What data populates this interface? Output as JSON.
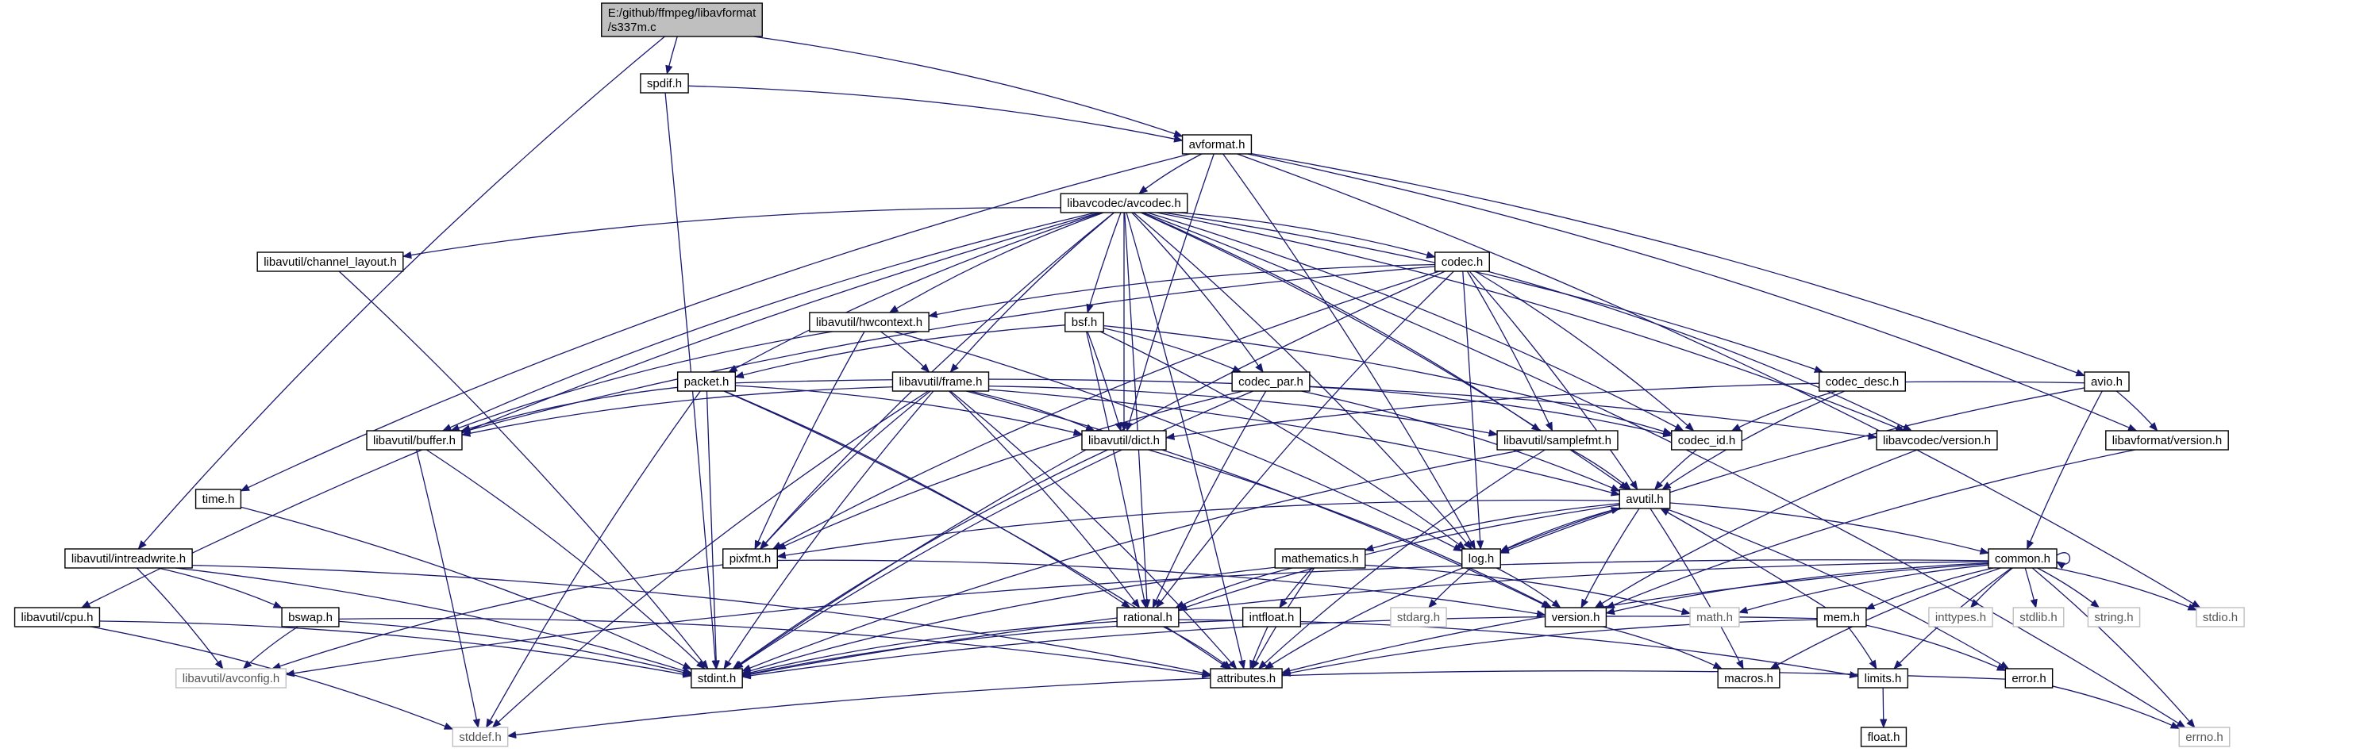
{
  "colors": {
    "edge": "#191970",
    "root_fill": "#bfbfbf",
    "node_fill": "#ffffff",
    "external_border": "#bfbfbf"
  },
  "nodes": [
    {
      "id": "root",
      "lines": [
        "E:/github/ffmpeg/libavformat",
        "/s337m.c"
      ],
      "kind": "root"
    },
    {
      "id": "spdif",
      "lines": [
        "spdif.h"
      ]
    },
    {
      "id": "avformat",
      "lines": [
        "avformat.h"
      ]
    },
    {
      "id": "avcodec",
      "lines": [
        "libavcodec/avcodec.h"
      ]
    },
    {
      "id": "chlayout",
      "lines": [
        "libavutil/channel_layout.h"
      ]
    },
    {
      "id": "codec",
      "lines": [
        "codec.h"
      ]
    },
    {
      "id": "hwcontext",
      "lines": [
        "libavutil/hwcontext.h"
      ]
    },
    {
      "id": "bsf",
      "lines": [
        "bsf.h"
      ]
    },
    {
      "id": "packet",
      "lines": [
        "packet.h"
      ]
    },
    {
      "id": "frame",
      "lines": [
        "libavutil/frame.h"
      ]
    },
    {
      "id": "codecpar",
      "lines": [
        "codec_par.h"
      ]
    },
    {
      "id": "codecdesc",
      "lines": [
        "codec_desc.h"
      ]
    },
    {
      "id": "avio",
      "lines": [
        "avio.h"
      ]
    },
    {
      "id": "buffer",
      "lines": [
        "libavutil/buffer.h"
      ]
    },
    {
      "id": "dict",
      "lines": [
        "libavutil/dict.h"
      ]
    },
    {
      "id": "samplefmt",
      "lines": [
        "libavutil/samplefmt.h"
      ]
    },
    {
      "id": "codecid",
      "lines": [
        "codec_id.h"
      ]
    },
    {
      "id": "lavcversion",
      "lines": [
        "libavcodec/version.h"
      ]
    },
    {
      "id": "lavfversion",
      "lines": [
        "libavformat/version.h"
      ]
    },
    {
      "id": "time",
      "lines": [
        "time.h"
      ]
    },
    {
      "id": "avutil",
      "lines": [
        "avutil.h"
      ]
    },
    {
      "id": "intreadwrite",
      "lines": [
        "libavutil/intreadwrite.h"
      ]
    },
    {
      "id": "pixfmt",
      "lines": [
        "pixfmt.h"
      ]
    },
    {
      "id": "mathematics",
      "lines": [
        "mathematics.h"
      ]
    },
    {
      "id": "log",
      "lines": [
        "log.h"
      ]
    },
    {
      "id": "common",
      "lines": [
        "common.h"
      ]
    },
    {
      "id": "cpu",
      "lines": [
        "libavutil/cpu.h"
      ]
    },
    {
      "id": "bswap",
      "lines": [
        "bswap.h"
      ]
    },
    {
      "id": "rational",
      "lines": [
        "rational.h"
      ]
    },
    {
      "id": "intfloat",
      "lines": [
        "intfloat.h"
      ]
    },
    {
      "id": "stdarg",
      "lines": [
        "stdarg.h"
      ],
      "kind": "ext"
    },
    {
      "id": "version",
      "lines": [
        "version.h"
      ]
    },
    {
      "id": "math",
      "lines": [
        "math.h"
      ],
      "kind": "ext"
    },
    {
      "id": "mem",
      "lines": [
        "mem.h"
      ]
    },
    {
      "id": "inttypes",
      "lines": [
        "inttypes.h"
      ],
      "kind": "ext"
    },
    {
      "id": "stdlib",
      "lines": [
        "stdlib.h"
      ],
      "kind": "ext"
    },
    {
      "id": "string",
      "lines": [
        "string.h"
      ],
      "kind": "ext"
    },
    {
      "id": "stdio",
      "lines": [
        "stdio.h"
      ],
      "kind": "ext"
    },
    {
      "id": "avconfig",
      "lines": [
        "libavutil/avconfig.h"
      ],
      "kind": "ext"
    },
    {
      "id": "stdint",
      "lines": [
        "stdint.h"
      ]
    },
    {
      "id": "attributes",
      "lines": [
        "attributes.h"
      ]
    },
    {
      "id": "macros",
      "lines": [
        "macros.h"
      ]
    },
    {
      "id": "limits",
      "lines": [
        "limits.h"
      ]
    },
    {
      "id": "error",
      "lines": [
        "error.h"
      ]
    },
    {
      "id": "stddef",
      "lines": [
        "stddef.h"
      ],
      "kind": "ext"
    },
    {
      "id": "float",
      "lines": [
        "float.h"
      ]
    },
    {
      "id": "errno",
      "lines": [
        "errno.h"
      ],
      "kind": "ext"
    }
  ],
  "edges": [
    [
      "root",
      "spdif"
    ],
    [
      "root",
      "avformat"
    ],
    [
      "root",
      "intreadwrite"
    ],
    [
      "spdif",
      "avformat"
    ],
    [
      "spdif",
      "stdint"
    ],
    [
      "avformat",
      "time"
    ],
    [
      "avformat",
      "avcodec"
    ],
    [
      "avformat",
      "avio"
    ],
    [
      "avformat",
      "lavfversion"
    ],
    [
      "avformat",
      "stdio"
    ],
    [
      "avformat",
      "dict"
    ],
    [
      "avformat",
      "log"
    ],
    [
      "avcodec",
      "chlayout"
    ],
    [
      "avcodec",
      "codec"
    ],
    [
      "avcodec",
      "hwcontext"
    ],
    [
      "avcodec",
      "bsf"
    ],
    [
      "avcodec",
      "packet"
    ],
    [
      "avcodec",
      "frame"
    ],
    [
      "avcodec",
      "codecpar"
    ],
    [
      "avcodec",
      "codecdesc"
    ],
    [
      "avcodec",
      "buffer"
    ],
    [
      "avcodec",
      "dict"
    ],
    [
      "avcodec",
      "samplefmt"
    ],
    [
      "avcodec",
      "codecid"
    ],
    [
      "avcodec",
      "lavcversion"
    ],
    [
      "avcodec",
      "avutil"
    ],
    [
      "avcodec",
      "pixfmt"
    ],
    [
      "avcodec",
      "log"
    ],
    [
      "avcodec",
      "cpu"
    ],
    [
      "avcodec",
      "attributes"
    ],
    [
      "avcodec",
      "rational"
    ],
    [
      "avcodec",
      "errno"
    ],
    [
      "chlayout",
      "stdint"
    ],
    [
      "codec",
      "hwcontext"
    ],
    [
      "codec",
      "codecid"
    ],
    [
      "codec",
      "samplefmt"
    ],
    [
      "codec",
      "lavcversion"
    ],
    [
      "codec",
      "avutil"
    ],
    [
      "codec",
      "log"
    ],
    [
      "codec",
      "rational"
    ],
    [
      "codec",
      "pixfmt"
    ],
    [
      "codec",
      "buffer"
    ],
    [
      "codec",
      "stdint"
    ],
    [
      "hwcontext",
      "frame"
    ],
    [
      "hwcontext",
      "buffer"
    ],
    [
      "hwcontext",
      "pixfmt"
    ],
    [
      "hwcontext",
      "log"
    ],
    [
      "bsf",
      "packet"
    ],
    [
      "bsf",
      "codecpar"
    ],
    [
      "bsf",
      "dict"
    ],
    [
      "bsf",
      "codecid"
    ],
    [
      "bsf",
      "rational"
    ],
    [
      "bsf",
      "log"
    ],
    [
      "packet",
      "buffer"
    ],
    [
      "packet",
      "dict"
    ],
    [
      "packet",
      "lavcversion"
    ],
    [
      "packet",
      "attributes"
    ],
    [
      "packet",
      "stdint"
    ],
    [
      "packet",
      "stddef"
    ],
    [
      "packet",
      "rational"
    ],
    [
      "frame",
      "buffer"
    ],
    [
      "frame",
      "dict"
    ],
    [
      "frame",
      "samplefmt"
    ],
    [
      "frame",
      "avutil"
    ],
    [
      "frame",
      "pixfmt"
    ],
    [
      "frame",
      "rational"
    ],
    [
      "frame",
      "version"
    ],
    [
      "frame",
      "stdint"
    ],
    [
      "frame",
      "stddef"
    ],
    [
      "frame",
      "attributes"
    ],
    [
      "codecpar",
      "codecid"
    ],
    [
      "codecpar",
      "avutil"
    ],
    [
      "codecpar",
      "pixfmt"
    ],
    [
      "codecpar",
      "rational"
    ],
    [
      "codecpar",
      "stdint"
    ],
    [
      "codecdesc",
      "codecid"
    ],
    [
      "codecdesc",
      "avutil"
    ],
    [
      "avio",
      "dict"
    ],
    [
      "avio",
      "lavfversion"
    ],
    [
      "avio",
      "common"
    ],
    [
      "avio",
      "log"
    ],
    [
      "buffer",
      "stdint"
    ],
    [
      "buffer",
      "stddef"
    ],
    [
      "dict",
      "stdint"
    ],
    [
      "dict",
      "version"
    ],
    [
      "samplefmt",
      "avutil"
    ],
    [
      "samplefmt",
      "attributes"
    ],
    [
      "samplefmt",
      "stdint"
    ],
    [
      "codecid",
      "avutil"
    ],
    [
      "lavcversion",
      "version"
    ],
    [
      "lavfversion",
      "version"
    ],
    [
      "time",
      "stdint"
    ],
    [
      "avutil",
      "common"
    ],
    [
      "avutil",
      "error"
    ],
    [
      "avutil",
      "rational"
    ],
    [
      "avutil",
      "version"
    ],
    [
      "avutil",
      "macros"
    ],
    [
      "avutil",
      "mathematics"
    ],
    [
      "avutil",
      "log"
    ],
    [
      "avutil",
      "pixfmt"
    ],
    [
      "intreadwrite",
      "bswap"
    ],
    [
      "intreadwrite",
      "avconfig"
    ],
    [
      "intreadwrite",
      "attributes"
    ],
    [
      "intreadwrite",
      "stdint"
    ],
    [
      "pixfmt",
      "avconfig"
    ],
    [
      "pixfmt",
      "version"
    ],
    [
      "mathematics",
      "stdint"
    ],
    [
      "mathematics",
      "math"
    ],
    [
      "mathematics",
      "attributes"
    ],
    [
      "mathematics",
      "rational"
    ],
    [
      "mathematics",
      "intfloat"
    ],
    [
      "log",
      "stdarg"
    ],
    [
      "log",
      "avutil"
    ],
    [
      "log",
      "attributes"
    ],
    [
      "log",
      "version"
    ],
    [
      "common",
      "errno"
    ],
    [
      "common",
      "inttypes"
    ],
    [
      "common",
      "limits"
    ],
    [
      "common",
      "math"
    ],
    [
      "common",
      "stdint"
    ],
    [
      "common",
      "stdio"
    ],
    [
      "common",
      "stdlib"
    ],
    [
      "common",
      "string"
    ],
    [
      "common",
      "attributes"
    ],
    [
      "common",
      "macros"
    ],
    [
      "common",
      "version"
    ],
    [
      "common",
      "avconfig"
    ],
    [
      "common",
      "mem"
    ],
    [
      "common",
      "common"
    ],
    [
      "cpu",
      "stddef"
    ],
    [
      "cpu",
      "stdint"
    ],
    [
      "bswap",
      "stdint"
    ],
    [
      "bswap",
      "avconfig"
    ],
    [
      "bswap",
      "attributes"
    ],
    [
      "rational",
      "stdint"
    ],
    [
      "rational",
      "limits"
    ],
    [
      "rational",
      "attributes"
    ],
    [
      "intfloat",
      "stdint"
    ],
    [
      "intfloat",
      "attributes"
    ],
    [
      "version",
      "macros"
    ],
    [
      "mem",
      "attributes"
    ],
    [
      "mem",
      "avutil"
    ],
    [
      "mem",
      "error"
    ],
    [
      "mem",
      "limits"
    ],
    [
      "mem",
      "stdint"
    ],
    [
      "limits",
      "float"
    ],
    [
      "error",
      "errno"
    ],
    [
      "error",
      "stddef"
    ]
  ]
}
